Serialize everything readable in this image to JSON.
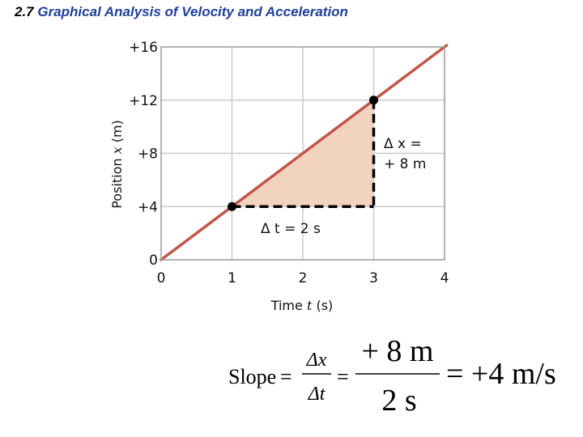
{
  "slide": {
    "number": "2.7",
    "title": "Graphical Analysis of Velocity and Acceleration"
  },
  "chart_data": {
    "type": "line",
    "series": [
      {
        "x": [
          0,
          4.5
        ],
        "y": [
          0,
          18
        ]
      }
    ],
    "points": [
      {
        "x": 1,
        "y": 4
      },
      {
        "x": 3,
        "y": 12
      }
    ],
    "xlim": [
      0,
      4
    ],
    "ylim": [
      0,
      16
    ],
    "x_ticks": [
      "0",
      "1",
      "2",
      "3",
      "4"
    ],
    "y_ticks": [
      "0",
      "+4",
      "+8",
      "+12",
      "+16"
    ],
    "xlabel": {
      "text": "Time",
      "var": "t",
      "unit": "(s)"
    },
    "ylabel": {
      "text": "Position",
      "var": "x",
      "unit": "(m)"
    },
    "grid": true,
    "annotations": {
      "dx_line1": "Δ x =",
      "dx_line2": "+ 8 m",
      "dt": "Δ t = 2 s"
    },
    "colors": {
      "line": "#c0574a",
      "fill": "#f2d3c0",
      "grid": "#c8c8c8",
      "frame": "#999999"
    }
  },
  "formula": {
    "slope_label": "Slope",
    "eq": "=",
    "dx": "Δx",
    "dt": "Δt",
    "num": "+ 8 m",
    "den": "2 s",
    "result": "= +4 m/s"
  }
}
